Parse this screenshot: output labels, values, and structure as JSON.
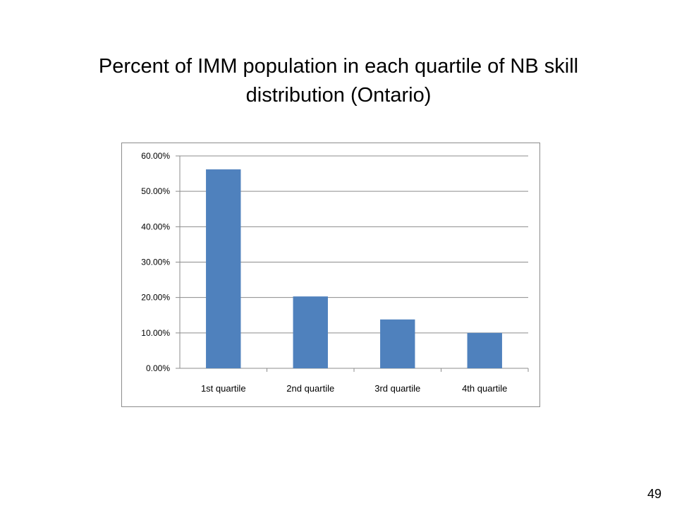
{
  "slide": {
    "title": "Percent of IMM population in each quartile of NB skill distribution (Ontario)",
    "page_number": "49"
  },
  "colors": {
    "bar": "#4f81bd",
    "gridline": "#8c8c8c",
    "axis": "#8c8c8c",
    "text": "#000000"
  },
  "chart_data": {
    "type": "bar",
    "title": "",
    "xlabel": "",
    "ylabel": "",
    "categories": [
      "1st quartile",
      "2nd quartile",
      "3rd quartile",
      "4th quartile"
    ],
    "values": [
      56.2,
      20.3,
      13.8,
      10.0
    ],
    "ylim": [
      0,
      60
    ],
    "yticks": [
      0,
      10,
      20,
      30,
      40,
      50,
      60
    ],
    "ytick_labels": [
      "0.00%",
      "10.00%",
      "20.00%",
      "30.00%",
      "40.00%",
      "50.00%",
      "60.00%"
    ],
    "grid": true,
    "legend": "none"
  }
}
